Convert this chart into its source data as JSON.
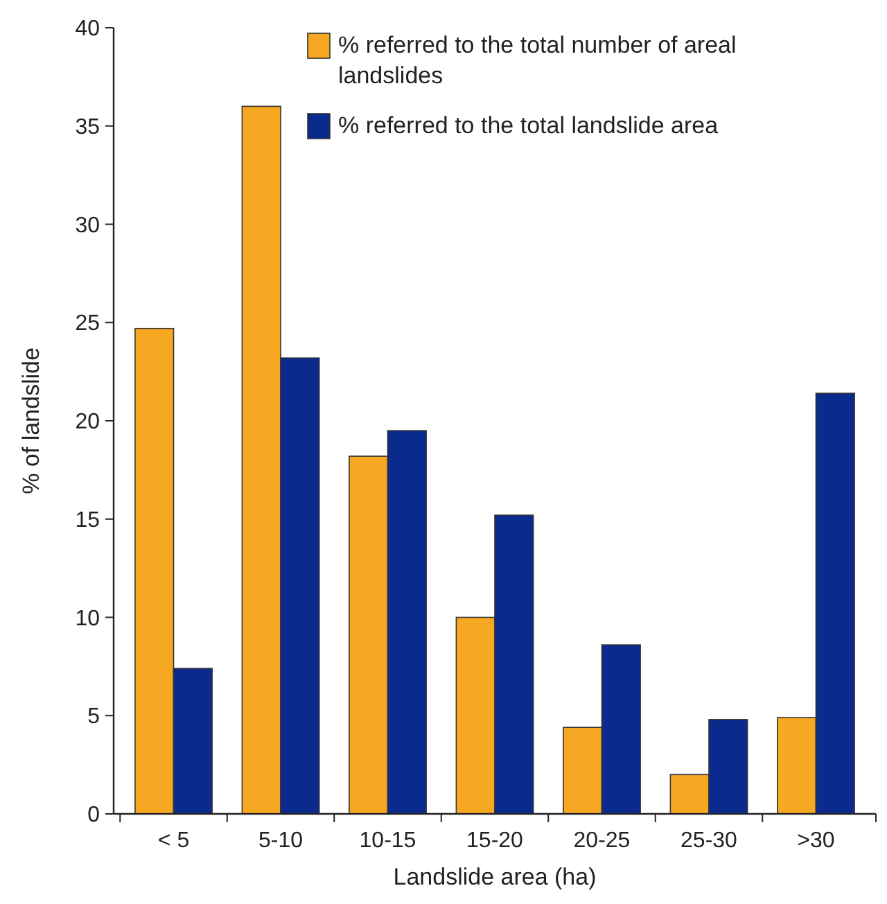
{
  "chart_data": {
    "type": "bar",
    "xlabel": "Landslide area (ha)",
    "ylabel": "% of landslide",
    "categories": [
      "< 5",
      "5-10",
      "10-15",
      "15-20",
      "20-25",
      "25-30",
      ">30"
    ],
    "series": [
      {
        "name": "% referred to the total number of areal landslides",
        "color": "#f7a823",
        "values": [
          24.7,
          36,
          18.2,
          10,
          4.4,
          2,
          4.9
        ]
      },
      {
        "name": "% referred to the total landslide area",
        "color": "#0b2a8e",
        "values": [
          7.4,
          23.2,
          19.5,
          15.2,
          8.6,
          4.8,
          21.4
        ]
      }
    ],
    "ylim": [
      0,
      40
    ],
    "yticks": [
      0,
      5,
      10,
      15,
      20,
      25,
      30,
      35,
      40
    ],
    "grid": false,
    "legend": "top right"
  }
}
